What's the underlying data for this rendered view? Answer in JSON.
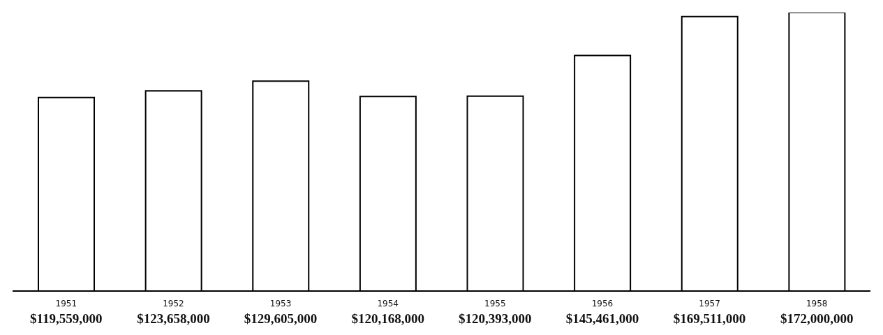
{
  "chart_data": {
    "type": "bar",
    "categories": [
      "1951",
      "1952",
      "1953",
      "1954",
      "1955",
      "1956",
      "1957",
      "1958"
    ],
    "values": [
      119559000,
      123658000,
      129605000,
      120168000,
      120393000,
      145461000,
      169511000,
      172000000
    ],
    "value_labels": [
      "$119,559,000",
      "$123,658,000",
      "$129,605,000",
      "$120,168,000",
      "$120,393,000",
      "$145,461,000",
      "$169,511,000",
      "$172,000,000"
    ],
    "color": "#ffffff"
  }
}
